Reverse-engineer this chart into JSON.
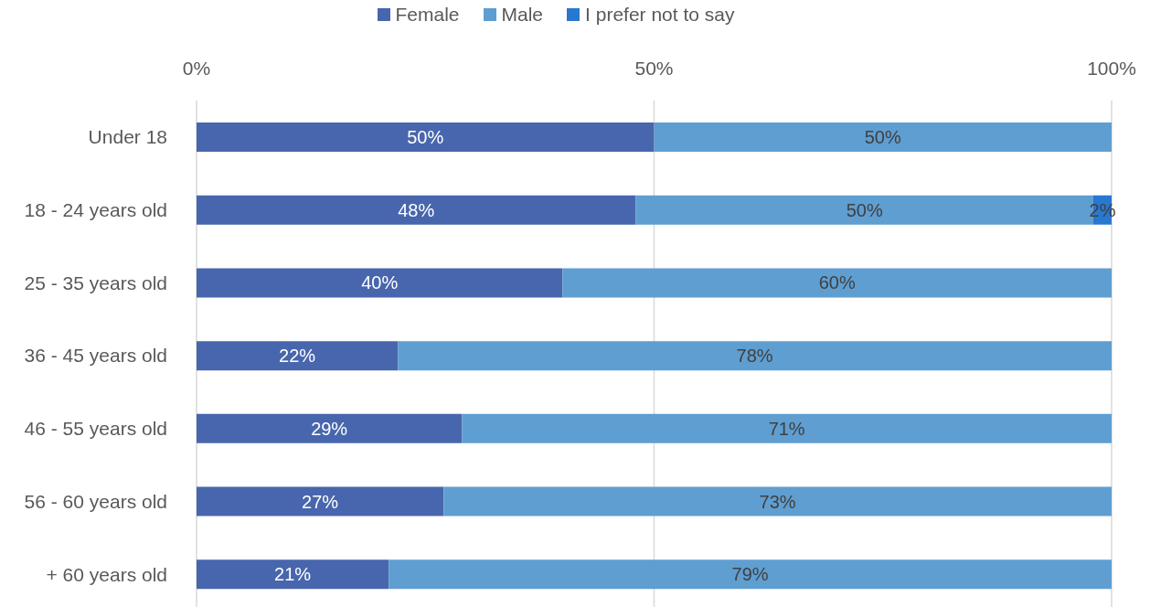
{
  "chart_data": {
    "type": "bar",
    "orientation": "horizontal",
    "stacked": true,
    "categories": [
      "Under 18",
      "18 - 24 years old",
      "25 - 35 years old",
      "36 - 45 years old",
      "46 - 55 years old",
      "56 - 60 years old",
      "+ 60 years old"
    ],
    "series": [
      {
        "name": "Female",
        "color": "#4866ad",
        "values": [
          50,
          48,
          40,
          22,
          29,
          27,
          21
        ],
        "value_labels": [
          "50%",
          "48%",
          "40%",
          "22%",
          "29%",
          "27%",
          "21%"
        ]
      },
      {
        "name": "Male",
        "color": "#5f9ed1",
        "values": [
          50,
          50,
          60,
          78,
          71,
          73,
          79
        ],
        "value_labels": [
          "50%",
          "50%",
          "60%",
          "78%",
          "71%",
          "73%",
          "79%"
        ]
      },
      {
        "name": "I prefer not to say",
        "color": "#2878d0",
        "values": [
          null,
          2,
          null,
          null,
          null,
          null,
          null
        ],
        "value_labels": [
          null,
          "2%",
          null,
          null,
          null,
          null,
          null
        ]
      }
    ],
    "xlim": [
      0,
      100
    ],
    "xticks": [
      {
        "value": 0,
        "label": "0%"
      },
      {
        "value": 50,
        "label": "50%"
      },
      {
        "value": 100,
        "label": "100%"
      }
    ],
    "grid": "x",
    "legend": "top"
  }
}
